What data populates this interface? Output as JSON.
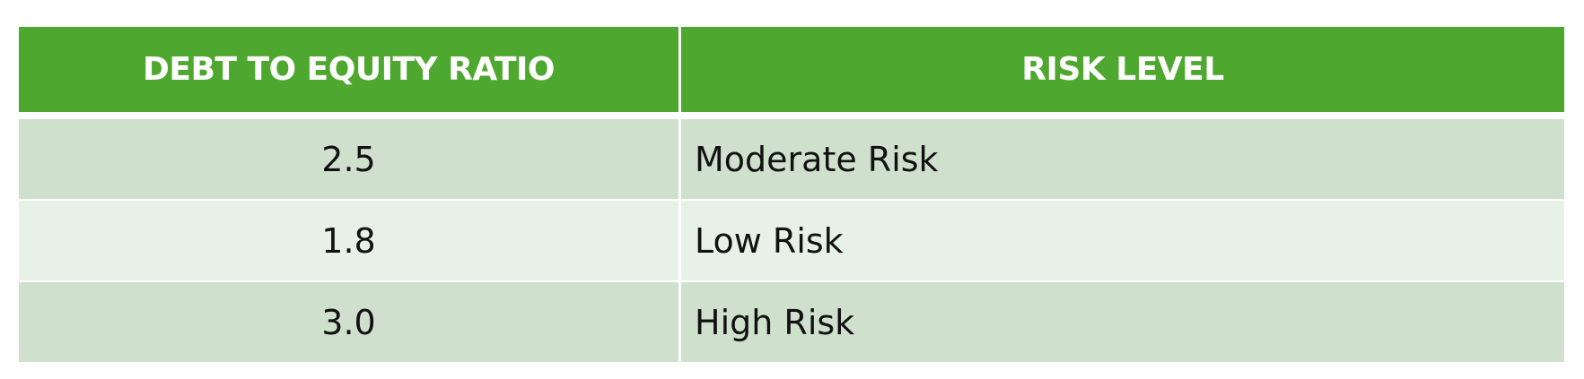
{
  "table": {
    "headers": [
      "DEBT TO EQUITY RATIO",
      "RISK LEVEL"
    ],
    "rows": [
      [
        "2.5",
        "Moderate Risk"
      ],
      [
        "1.8",
        "Low Risk"
      ],
      [
        "3.0",
        "High Risk"
      ]
    ]
  },
  "colors": {
    "header_bg": "#4ea72e",
    "header_text": "#ffffff",
    "row_band_1": "#cfe1cd",
    "row_band_2": "#e8f1e7"
  }
}
